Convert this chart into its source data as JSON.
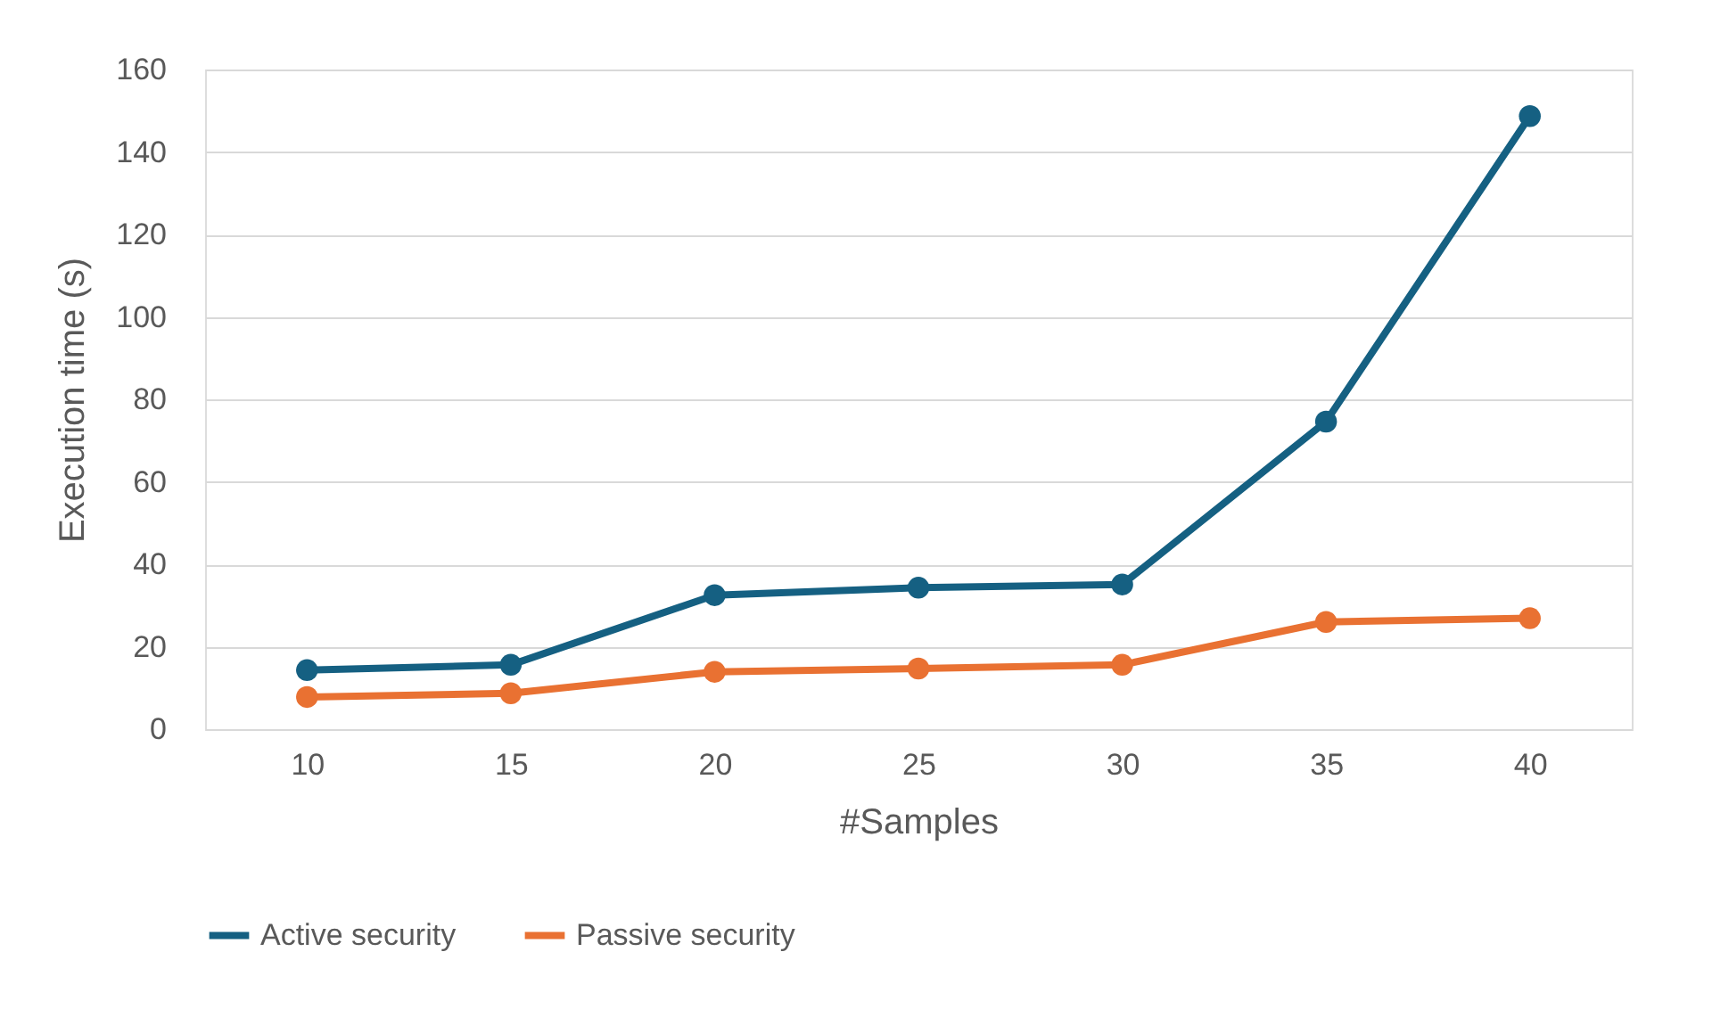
{
  "chart_data": {
    "type": "line",
    "xlabel": "#Samples",
    "ylabel": "Execution time (s)",
    "categories": [
      "10",
      "15",
      "20",
      "25",
      "30",
      "35",
      "40"
    ],
    "series": [
      {
        "name": "Active security",
        "color": "#156082",
        "values": [
          14.3,
          15.6,
          32.5,
          34.3,
          35.1,
          74.6,
          148.7
        ]
      },
      {
        "name": "Passive security",
        "color": "#e97132",
        "values": [
          7.8,
          8.7,
          13.9,
          14.7,
          15.6,
          26.0,
          26.9
        ]
      }
    ],
    "ylim": [
      0,
      160
    ],
    "yticks": [
      0,
      20,
      40,
      60,
      80,
      100,
      120,
      140,
      160
    ],
    "grid": "y",
    "legend": "bottom",
    "marker": "circle",
    "line_style": "solid"
  }
}
